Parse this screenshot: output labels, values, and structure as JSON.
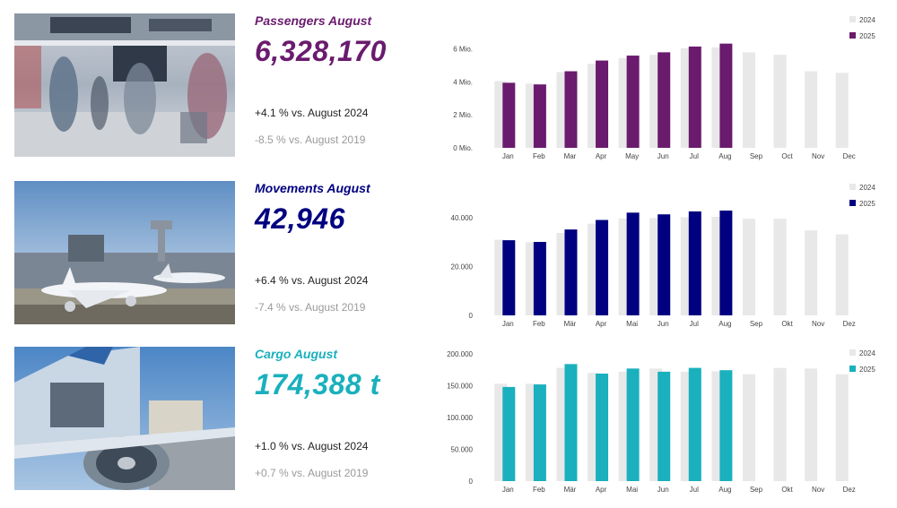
{
  "colors": {
    "passengers": "#6a1b6e",
    "movements": "#000080",
    "cargo": "#1ab0bd",
    "bar_2024": "#e8e8e8",
    "muted_text": "#9a9a9a"
  },
  "passengers": {
    "title": "Passengers August",
    "value": "6,328,170",
    "cmp_2024": "+4.1 % vs. August 2024",
    "cmp_2019": "-8.5 % vs. August 2019",
    "photo_icon": "airport-terminal-crowd-photo"
  },
  "movements": {
    "title": "Movements August",
    "value": "42,946",
    "cmp_2024": "+6.4 % vs. August 2024",
    "cmp_2019": "-7.4 % vs. August 2019",
    "photo_icon": "aircraft-at-airport-photo"
  },
  "cargo": {
    "title": "Cargo August",
    "value": "174,388 t",
    "cmp_2024": "+1.0 % vs. August 2024",
    "cmp_2019": "+0.7 % vs. August 2019",
    "photo_icon": "cargo-aircraft-loading-photo"
  },
  "chart_data": [
    {
      "type": "bar",
      "id": "passengers",
      "categories": [
        "Jan",
        "Feb",
        "Mar",
        "Apr",
        "May",
        "Jun",
        "Jul",
        "Aug",
        "Sep",
        "Oct",
        "Nov",
        "Dec"
      ],
      "series": [
        {
          "name": "2024",
          "values": [
            4.05,
            3.9,
            4.6,
            5.1,
            5.45,
            5.65,
            6.05,
            6.1,
            5.8,
            5.65,
            4.65,
            4.55
          ]
        },
        {
          "name": "2025",
          "values": [
            3.95,
            3.85,
            4.65,
            5.3,
            5.6,
            5.8,
            6.15,
            6.32817,
            null,
            null,
            null,
            null
          ]
        }
      ],
      "ylim": [
        0,
        6.8
      ],
      "yticks": [
        0,
        2,
        4,
        6
      ],
      "ytick_labels": [
        "0 Mio.",
        "2 Mio.",
        "4 Mio.",
        "6 Mio."
      ],
      "legend": "top-right",
      "colors": [
        "#e8e8e8",
        "#6a1b6e"
      ]
    },
    {
      "type": "bar",
      "id": "movements",
      "categories": [
        "Jan",
        "Feb",
        "Mär",
        "Apr",
        "Mai",
        "Jun",
        "Jul",
        "Aug",
        "Sep",
        "Okt",
        "Nov",
        "Dez"
      ],
      "series": [
        {
          "name": "2024",
          "values": [
            31000,
            30000,
            33800,
            37600,
            39700,
            39900,
            40200,
            40400,
            39600,
            39600,
            34800,
            33200
          ]
        },
        {
          "name": "2025",
          "values": [
            30800,
            30100,
            35200,
            39100,
            42100,
            41400,
            42600,
            42946,
            null,
            null,
            null,
            null
          ]
        }
      ],
      "ylim": [
        0,
        47000
      ],
      "yticks": [
        0,
        20000,
        40000
      ],
      "ytick_labels": [
        "0",
        "20.000",
        "40.000"
      ],
      "legend": "top-right",
      "colors": [
        "#e8e8e8",
        "#000080"
      ]
    },
    {
      "type": "bar",
      "id": "cargo",
      "categories": [
        "Jan",
        "Feb",
        "Mär",
        "Apr",
        "Mai",
        "Jun",
        "Jul",
        "Aug",
        "Sep",
        "Okt",
        "Nov",
        "Dez"
      ],
      "series": [
        {
          "name": "2024",
          "values": [
            153000,
            153000,
            178000,
            170000,
            172000,
            177000,
            172000,
            172700,
            168000,
            178000,
            177000,
            168000
          ]
        },
        {
          "name": "2025",
          "values": [
            148000,
            152000,
            184000,
            169000,
            177000,
            172000,
            178000,
            174388,
            null,
            null,
            null,
            null
          ]
        }
      ],
      "ylim": [
        0,
        200000
      ],
      "yticks": [
        0,
        50000,
        100000,
        150000,
        200000
      ],
      "ytick_labels": [
        "0",
        "50.000",
        "100.000",
        "150.000",
        "200.000"
      ],
      "legend": "top-right",
      "colors": [
        "#e8e8e8",
        "#1ab0bd"
      ]
    }
  ]
}
